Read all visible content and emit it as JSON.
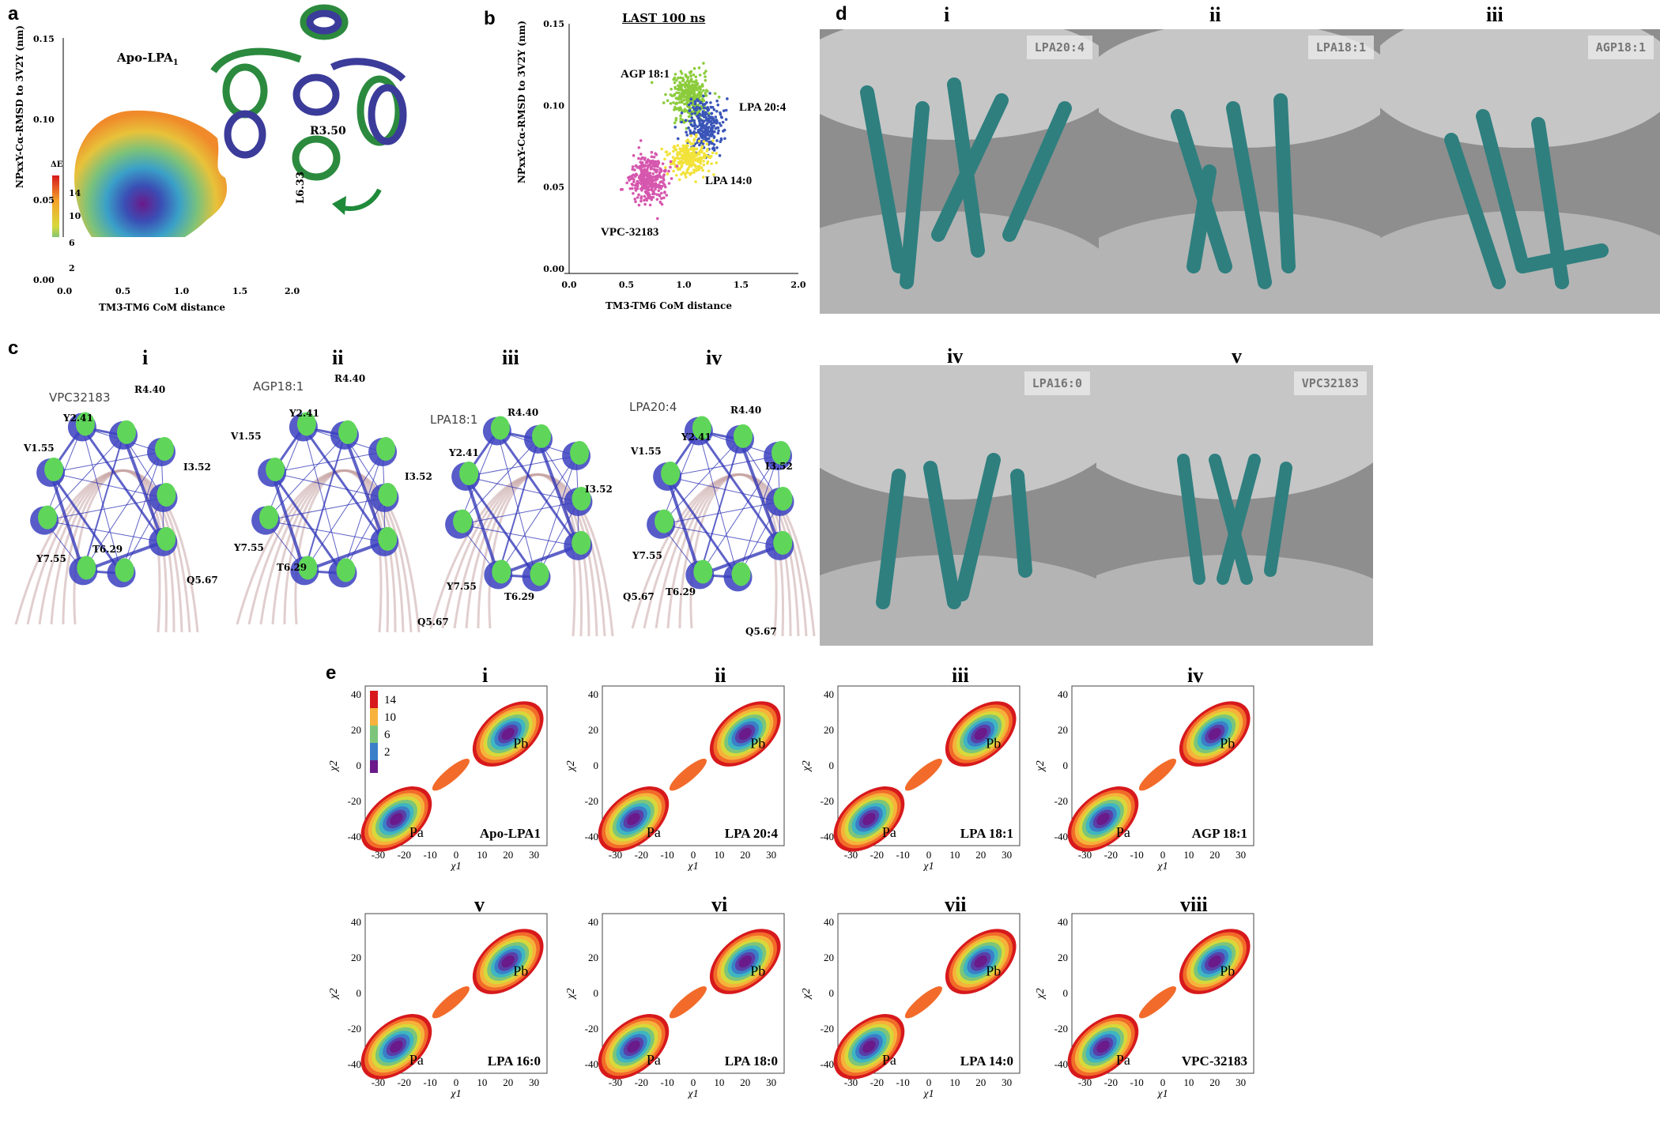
{
  "panels": {
    "a": {
      "letter": "a",
      "title": "Apo-LPA",
      "title_sub": "1",
      "ylabel": "NPxxY-Cα-RMSD to 3V2Y (nm)",
      "xlabel": "TM3-TM6 CoM distance",
      "yticks": [
        "0.15",
        "0.10",
        "0.05",
        "0.00"
      ],
      "xticks": [
        "0.0",
        "0.5",
        "1.0",
        "1.5",
        "2.0"
      ],
      "colorbar_title": "ΔE",
      "colorbar_ticks": [
        "14",
        "10",
        "6",
        "2"
      ],
      "residues": [
        "R3.50",
        "L6.33"
      ]
    },
    "b": {
      "letter": "b",
      "title": "LAST 100 ns",
      "ylabel": "NPxxY-Cα-RMSD to 3V2Y (nm)",
      "xlabel": "TM3-TM6 CoM distance"
    },
    "c": {
      "letter": "c",
      "sub": [
        {
          "roman": "i",
          "ligand": "VPC32183",
          "res": [
            "R4.40",
            "Y2.41",
            "V1.55",
            "I3.52",
            "Y7.55",
            "T6.29",
            "Q5.67"
          ]
        },
        {
          "roman": "ii",
          "ligand": "AGP18:1",
          "res": [
            "R4.40",
            "Y2.41",
            "V1.55",
            "I3.52",
            "Y7.55",
            "T6.29",
            "Q5.67"
          ]
        },
        {
          "roman": "iii",
          "ligand": "LPA18:1",
          "res": [
            "R4.40",
            "Y2.41",
            "I3.52",
            "Y7.55",
            "T6.29",
            "Q5.67"
          ]
        },
        {
          "roman": "iv",
          "ligand": "LPA20:4",
          "res": [
            "R4.40",
            "Y2.41",
            "V1.55",
            "I3.52",
            "Y7.55",
            "T6.29",
            "Q5.67"
          ]
        }
      ]
    },
    "d": {
      "letter": "d",
      "sub": [
        {
          "roman": "i",
          "tag": "LPA20:4"
        },
        {
          "roman": "ii",
          "tag": "LPA18:1"
        },
        {
          "roman": "iii",
          "tag": "AGP18:1"
        },
        {
          "roman": "iv",
          "tag": "LPA16:0"
        },
        {
          "roman": "v",
          "tag": "VPC32183"
        }
      ]
    },
    "e": {
      "letter": "e",
      "xlabel": "χ1",
      "ylabel": "χ2",
      "xticks": [
        "-30",
        "-20",
        "-10",
        "0",
        "10",
        "20",
        "30"
      ],
      "yticks": [
        "40",
        "20",
        "0",
        "-20",
        "-40"
      ],
      "colorbar_ticks": [
        "14",
        "10",
        "6",
        "2"
      ],
      "state_a": "Pa",
      "state_b": "Pb",
      "sub": [
        {
          "roman": "i",
          "label": "Apo-LPA1"
        },
        {
          "roman": "ii",
          "label": "LPA 20:4"
        },
        {
          "roman": "iii",
          "label": "LPA 18:1"
        },
        {
          "roman": "iv",
          "label": "AGP 18:1"
        },
        {
          "roman": "v",
          "label": "LPA 16:0"
        },
        {
          "roman": "vi",
          "label": "LPA 18:0"
        },
        {
          "roman": "vii",
          "label": "LPA 14:0"
        },
        {
          "roman": "viii",
          "label": "VPC-32183"
        }
      ]
    }
  },
  "chart_data": [
    {
      "type": "scatter",
      "title": "LAST 100 ns",
      "xlabel": "TM3-TM6 CoM distance",
      "ylabel": "NPxxY-Cα-RMSD to 3V2Y (nm)",
      "xlim": [
        0.0,
        2.0
      ],
      "ylim": [
        0.0,
        0.15
      ],
      "xticks": [
        "0.0",
        "0.5",
        "1.0",
        "1.5",
        "2.0"
      ],
      "yticks": [
        "0.00",
        "0.05",
        "0.10",
        "0.15"
      ],
      "series": [
        {
          "name": "AGP 18:1",
          "color": "#8ccc3c",
          "center": [
            1.05,
            0.105
          ],
          "spread": [
            0.13,
            0.012
          ],
          "n": 320
        },
        {
          "name": "LPA 20:4",
          "color": "#3a55b8",
          "center": [
            1.18,
            0.088
          ],
          "spread": [
            0.13,
            0.013
          ],
          "n": 260
        },
        {
          "name": "LPA 14:0",
          "color": "#f2e23a",
          "center": [
            1.05,
            0.068
          ],
          "spread": [
            0.14,
            0.009
          ],
          "n": 260
        },
        {
          "name": "VPC-32183",
          "color": "#d657ae",
          "center": [
            0.7,
            0.055
          ],
          "spread": [
            0.13,
            0.012
          ],
          "n": 320
        }
      ]
    }
  ]
}
